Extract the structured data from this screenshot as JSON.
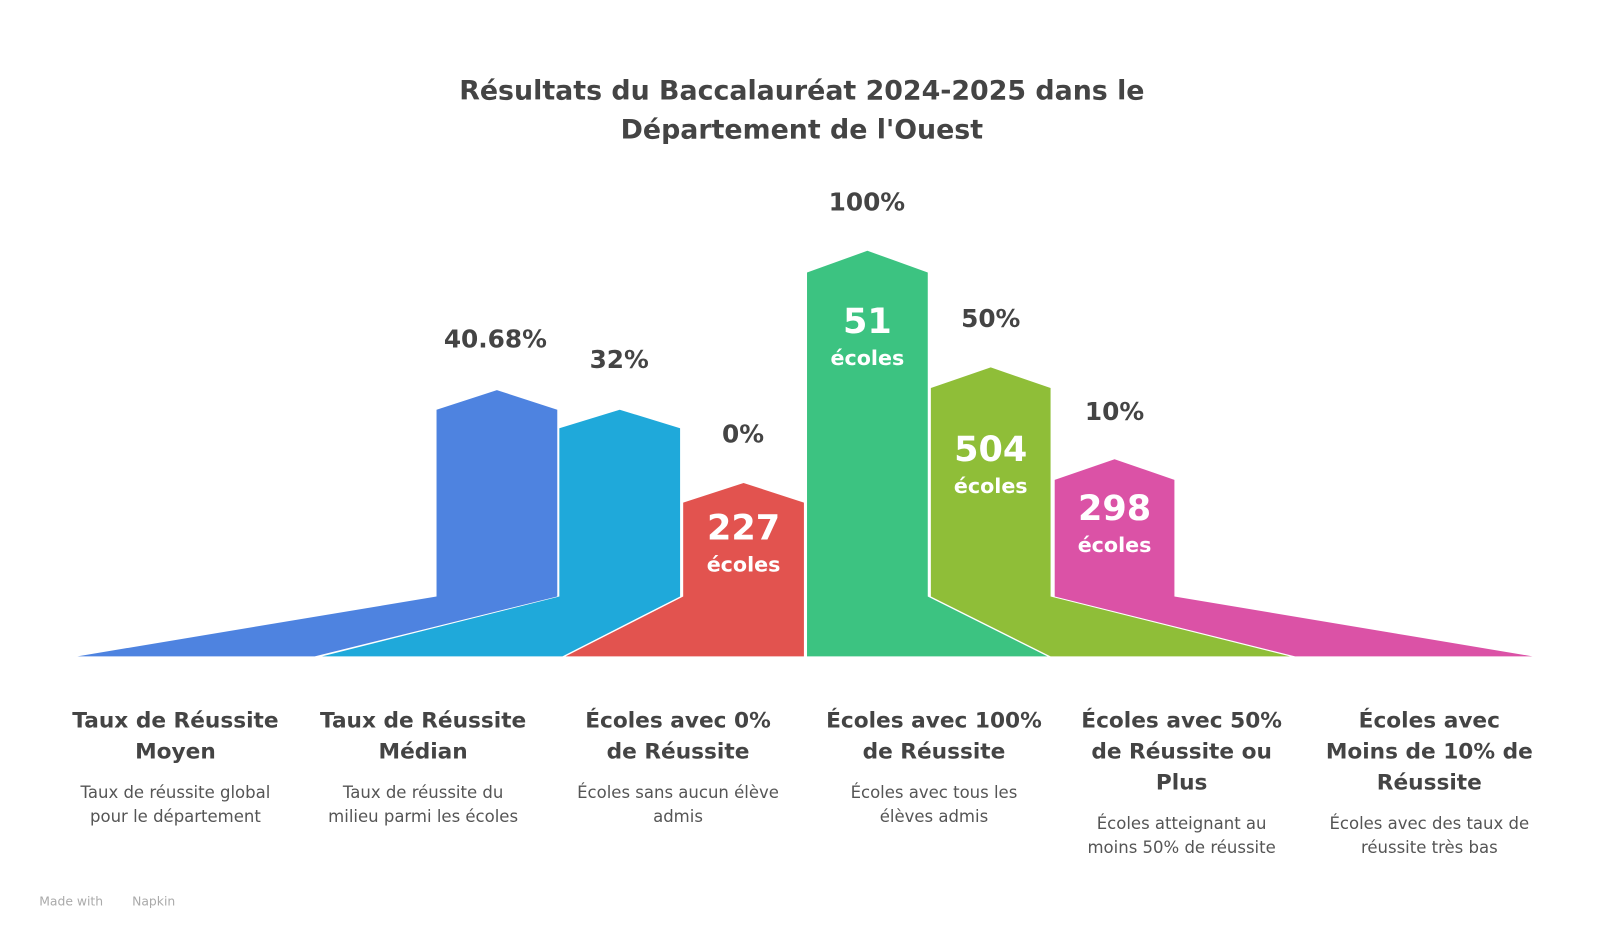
{
  "title": [
    "Résultats du Baccalauréat 2024-2025 dans le",
    "Département de l'Ouest"
  ],
  "items": [
    {
      "value_label": "40.68%",
      "heading": [
        "Taux de Réussite",
        "Moyen"
      ],
      "description": [
        "Taux de réussite global",
        "pour le département"
      ]
    },
    {
      "value_label": "32%",
      "heading": [
        "Taux de Réussite",
        "Médian"
      ],
      "description": [
        "Taux de réussite du",
        "milieu parmi les écoles"
      ]
    },
    {
      "value_label": "0%",
      "count": "227",
      "unit": "écoles",
      "heading": [
        "Écoles avec 0%",
        "de Réussite"
      ],
      "description": [
        "Écoles sans aucun élève",
        "admis"
      ]
    },
    {
      "value_label": "100%",
      "count": "51",
      "unit": "écoles",
      "heading": [
        "Écoles avec 100%",
        "de Réussite"
      ],
      "description": [
        "Écoles avec tous les",
        "élèves admis"
      ]
    },
    {
      "value_label": "50%",
      "count": "504",
      "unit": "écoles",
      "heading": [
        "Écoles avec 50%",
        "de Réussite ou",
        "Plus"
      ],
      "description": [
        "Écoles atteignant au",
        "moins 50% de réussite"
      ]
    },
    {
      "value_label": "10%",
      "count": "298",
      "unit": "écoles",
      "heading": [
        "Écoles avec",
        "Moins de 10% de",
        "Réussite"
      ],
      "description": [
        "Écoles avec des taux de",
        "réussite très bas"
      ]
    }
  ],
  "footer": {
    "made_with": "Made with",
    "brand": "Napkin"
  }
}
